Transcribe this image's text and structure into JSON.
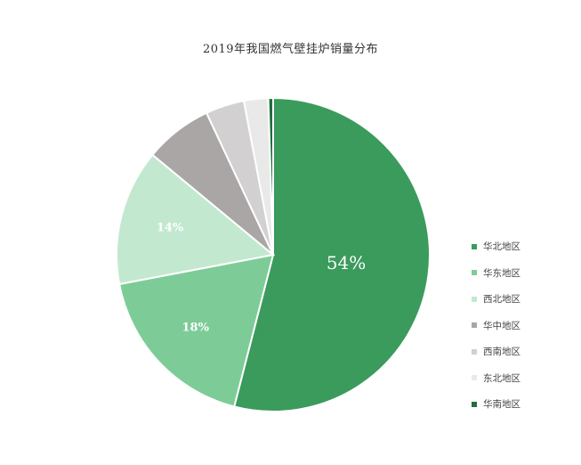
{
  "chart_data": {
    "type": "pie",
    "title": "2019年我国燃气壁挂炉销量分布",
    "slices": [
      {
        "name": "华北地区",
        "value": 54,
        "label": "54%",
        "color": "#3a9b5c"
      },
      {
        "name": "华东地区",
        "value": 18,
        "label": "18%",
        "color": "#7dcc98"
      },
      {
        "name": "西北地区",
        "value": 14,
        "label": "14%",
        "color": "#c3e8d0"
      },
      {
        "name": "华中地区",
        "value": 7,
        "label": "",
        "color": "#aaa6a6"
      },
      {
        "name": "西南地区",
        "value": 4,
        "label": "",
        "color": "#d2d0d0"
      },
      {
        "name": "东北地区",
        "value": 2.5,
        "label": "",
        "color": "#e9e9e9"
      },
      {
        "name": "华南地区",
        "value": 0.5,
        "label": "",
        "color": "#1f6e3d"
      }
    ],
    "legend_position": "right"
  }
}
